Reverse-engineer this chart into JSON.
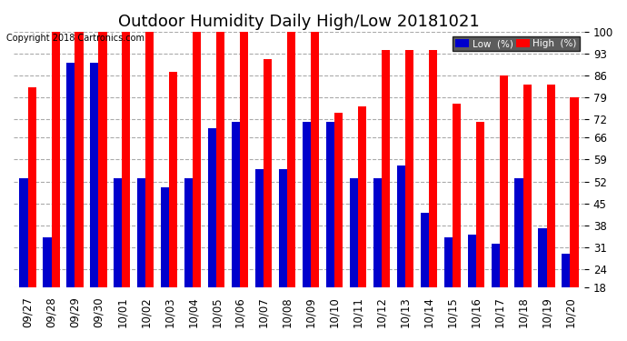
{
  "title": "Outdoor Humidity Daily High/Low 20181021",
  "copyright": "Copyright 2018 Cartronics.com",
  "dates": [
    "09/27",
    "09/28",
    "09/29",
    "09/30",
    "10/01",
    "10/02",
    "10/03",
    "10/04",
    "10/05",
    "10/06",
    "10/07",
    "10/08",
    "10/09",
    "10/10",
    "10/11",
    "10/12",
    "10/13",
    "10/14",
    "10/15",
    "10/16",
    "10/17",
    "10/18",
    "10/19",
    "10/20"
  ],
  "high": [
    82,
    100,
    100,
    100,
    100,
    100,
    87,
    100,
    100,
    100,
    91,
    100,
    100,
    74,
    76,
    94,
    94,
    94,
    77,
    71,
    86,
    83,
    83,
    79
  ],
  "low": [
    53,
    34,
    90,
    90,
    53,
    53,
    50,
    53,
    69,
    71,
    56,
    56,
    71,
    71,
    53,
    53,
    57,
    42,
    34,
    35,
    32,
    53,
    37,
    29
  ],
  "high_color": "#FF0000",
  "low_color": "#0000CC",
  "background_color": "#FFFFFF",
  "grid_color": "#AAAAAA",
  "ylim_min": 18,
  "ylim_max": 100,
  "yticks": [
    18,
    24,
    31,
    38,
    45,
    52,
    59,
    66,
    72,
    79,
    86,
    93,
    100
  ],
  "bar_width": 0.35,
  "title_fontsize": 13,
  "tick_fontsize": 8.5,
  "legend_low_label": "Low  (%)",
  "legend_high_label": "High  (%)"
}
